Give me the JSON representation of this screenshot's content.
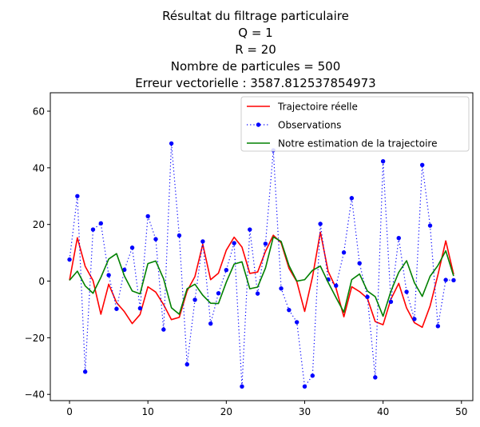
{
  "chart_data": {
    "type": "line",
    "title_lines": [
      "Résultat du filtrage particulaire",
      "Q = 1",
      "R = 20",
      "Nombre de particules = 500",
      "Erreur vectorielle : 3587.812537854973"
    ],
    "xlabel": "",
    "ylabel": "",
    "xlim": [
      -2.45,
      51.45
    ],
    "ylim": [
      -42.2,
      66.5
    ],
    "xticks": [
      0,
      10,
      20,
      30,
      40,
      50
    ],
    "yticks": [
      -40,
      -20,
      0,
      20,
      40,
      60
    ],
    "grid": false,
    "legend_position": "top-right",
    "x": [
      0,
      1,
      2,
      3,
      4,
      5,
      6,
      7,
      8,
      9,
      10,
      11,
      12,
      13,
      14,
      15,
      16,
      17,
      18,
      19,
      20,
      21,
      22,
      23,
      24,
      25,
      26,
      27,
      28,
      29,
      30,
      31,
      32,
      33,
      34,
      35,
      36,
      37,
      38,
      39,
      40,
      41,
      42,
      43,
      44,
      45,
      46,
      47,
      48,
      49
    ],
    "series": [
      {
        "name": "Trajectoire réelle",
        "color": "#ff0000",
        "style": "solid",
        "marker": "none",
        "values": [
          0.3,
          15.3,
          5.2,
          0.2,
          -11.7,
          -1.1,
          -7.6,
          -10.8,
          -15.0,
          -11.8,
          -2.0,
          -3.9,
          -8.3,
          -13.6,
          -12.8,
          -3.5,
          1.6,
          13.0,
          0.5,
          2.8,
          10.9,
          15.5,
          12.0,
          2.7,
          3.2,
          10.5,
          16.2,
          13.5,
          4.5,
          -0.2,
          -10.7,
          1.5,
          17.3,
          3.4,
          -2.5,
          -12.6,
          -2.0,
          -3.7,
          -6.1,
          -14.3,
          -15.4,
          -6.4,
          -0.8,
          -9.5,
          -14.7,
          -16.3,
          -8.8,
          2.2,
          14.2,
          2.4
        ]
      },
      {
        "name": "Observations",
        "color": "#0000ff",
        "style": "dotted",
        "marker": "circle",
        "values": [
          7.6,
          30.0,
          -32.0,
          18.2,
          20.4,
          2.1,
          -9.8,
          4.0,
          11.8,
          -9.6,
          22.9,
          14.8,
          -17.1,
          48.6,
          16.1,
          -29.4,
          -6.6,
          14.0,
          -15.0,
          -4.3,
          3.9,
          13.4,
          -37.2,
          18.2,
          -4.4,
          13.2,
          46.2,
          -2.6,
          -10.2,
          -14.5,
          -37.2,
          -33.4,
          20.2,
          0.6,
          -1.6,
          10.1,
          29.3,
          6.3,
          -5.6,
          -34.0,
          42.3,
          -7.3,
          15.2,
          -3.8,
          -13.4,
          41.0,
          19.6,
          -15.9,
          0.4,
          0.3
        ]
      },
      {
        "name": "Notre estimation de la trajectoire",
        "color": "#008000",
        "style": "solid",
        "marker": "none",
        "values": [
          0.3,
          3.5,
          -1.7,
          -4.3,
          1.3,
          7.8,
          9.7,
          1.8,
          -3.5,
          -4.5,
          6.2,
          7.1,
          0.8,
          -9.4,
          -11.7,
          -2.7,
          -1.1,
          -5.0,
          -7.8,
          -7.9,
          -0.4,
          6.0,
          6.8,
          -2.7,
          -2.1,
          4.6,
          15.6,
          14.0,
          5.5,
          0.0,
          0.5,
          3.8,
          5.3,
          -0.5,
          -5.8,
          -11.0,
          0.5,
          2.5,
          -3.5,
          -5.5,
          -12.4,
          -3.6,
          3.1,
          7.2,
          -0.6,
          -5.4,
          1.7,
          5.5,
          10.7,
          1.8
        ]
      }
    ]
  }
}
